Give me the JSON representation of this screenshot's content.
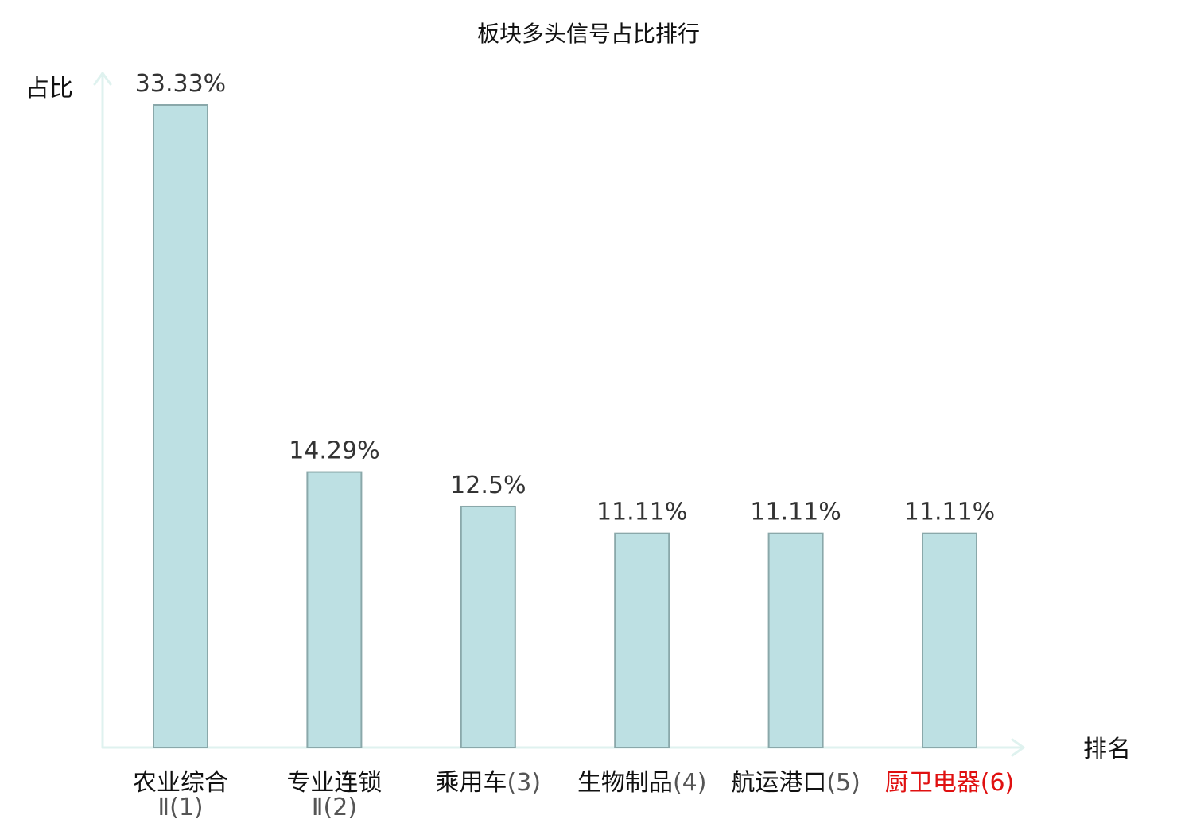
{
  "chart_data": {
    "type": "bar",
    "title": "板块多头信号占比排行",
    "ylabel": "占比",
    "xlabel": "排名",
    "ylim": [
      0,
      35
    ],
    "grid": false,
    "categories": [
      {
        "name": "农业综合",
        "rank": "Ⅱ(1)",
        "highlight": false
      },
      {
        "name": "专业连锁",
        "rank": "Ⅱ(2)",
        "highlight": false
      },
      {
        "name": "乘用车",
        "rank": "(3)",
        "highlight": false
      },
      {
        "name": "生物制品",
        "rank": "(4)",
        "highlight": false
      },
      {
        "name": "航运港口",
        "rank": "(5)",
        "highlight": false
      },
      {
        "name": "厨卫电器",
        "rank": "(6)",
        "highlight": true
      }
    ],
    "values": [
      33.33,
      14.29,
      12.5,
      11.11,
      11.11,
      11.11
    ],
    "value_labels": [
      "33.33%",
      "14.29%",
      "12.5%",
      "11.11%",
      "11.11%",
      "11.11%"
    ],
    "colors": {
      "bar_fill": "#bde0e3",
      "bar_stroke": "#8aa8aa",
      "axis": "#dff2ef",
      "highlight_text": "#e01010"
    }
  }
}
